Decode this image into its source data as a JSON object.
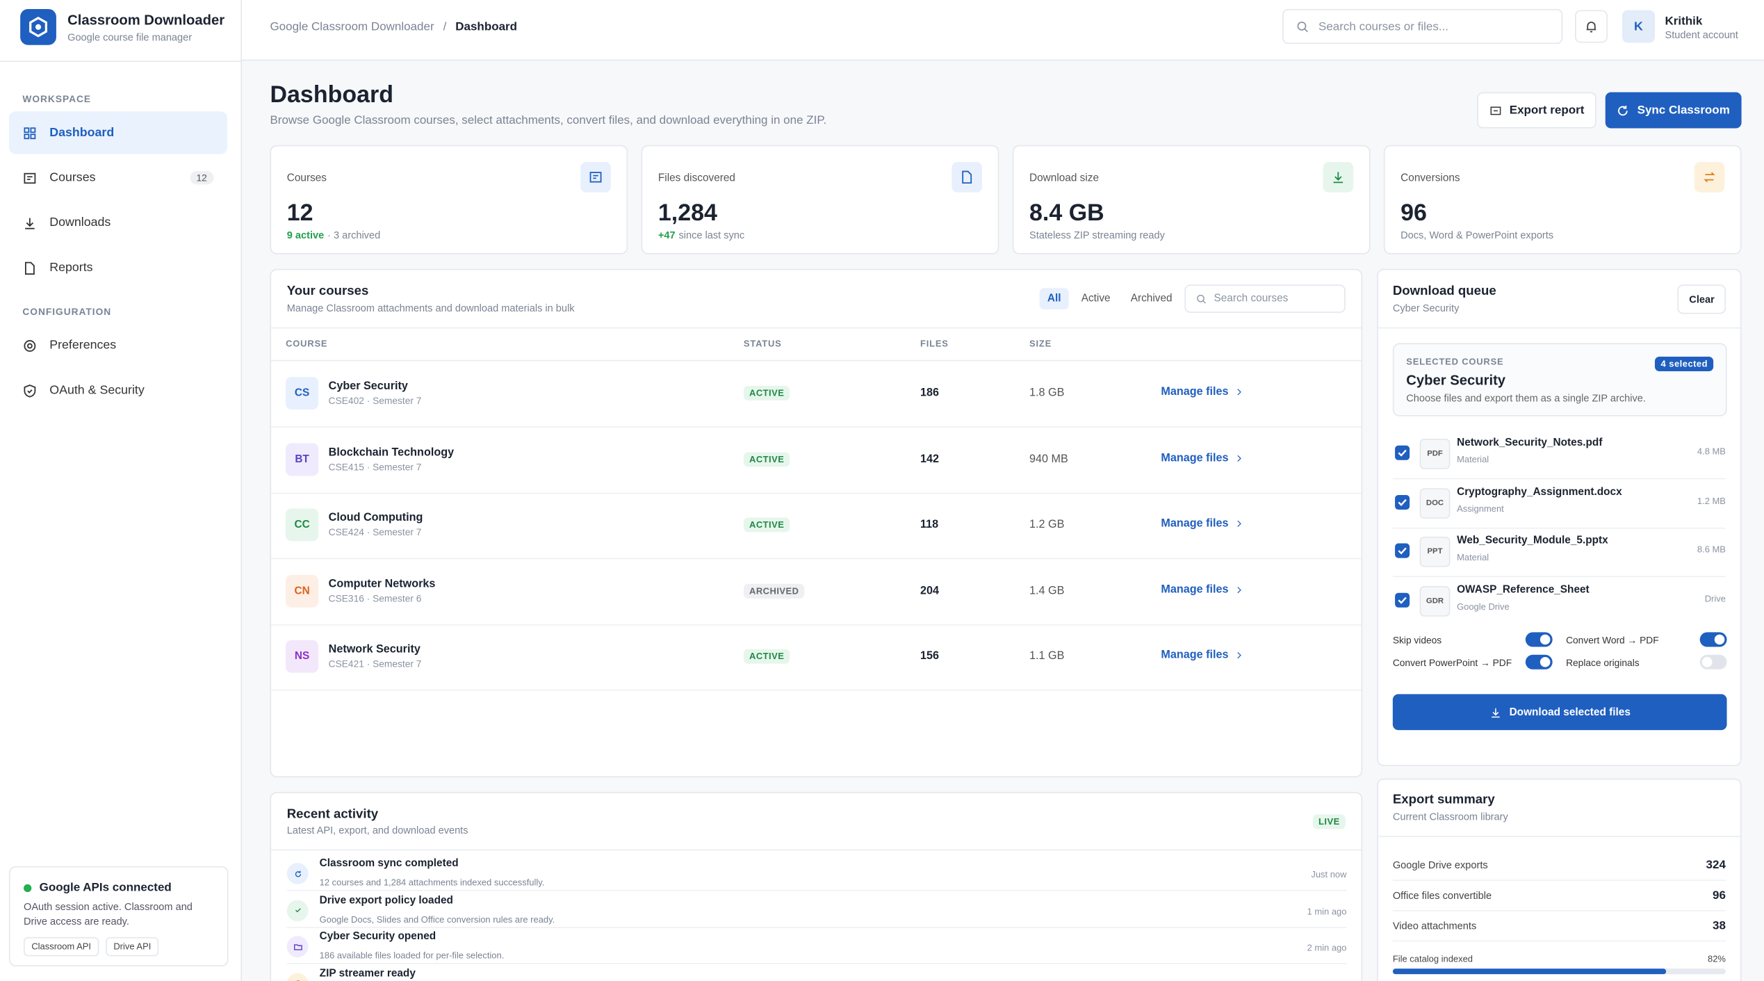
{
  "brand": {
    "title": "Classroom Downloader",
    "subtitle": "Google course file manager"
  },
  "sidebar": {
    "sections": [
      {
        "label": "WORKSPACE",
        "items": [
          {
            "label": "Dashboard",
            "active": true
          },
          {
            "label": "Courses",
            "badge": 12
          },
          {
            "label": "Downloads"
          },
          {
            "label": "Reports"
          }
        ]
      },
      {
        "label": "CONFIGURATION",
        "items": [
          {
            "label": "Preferences"
          },
          {
            "label": "OAuth & Security"
          }
        ]
      }
    ],
    "status": {
      "title": "Google APIs connected",
      "text": "OAuth session active. Classroom and Drive access are ready.",
      "tags": [
        "Classroom API",
        "Drive API"
      ]
    }
  },
  "topbar": {
    "breadcrumb": [
      "Google Classroom Downloader",
      "Dashboard"
    ],
    "separator": "/",
    "search": "Search courses or files...",
    "user": {
      "initial": "K",
      "name": "Krithik",
      "role": "Student account"
    }
  },
  "page": {
    "title": "Dashboard",
    "subtitle": "Browse Google Classroom courses, select attachments, convert files, and download everything in one ZIP.",
    "buttons": [
      "Export report",
      "Sync Classroom"
    ]
  },
  "stats": [
    {
      "label": "Courses",
      "value": 12,
      "highlight": "9 active",
      "note": "· 3 archived",
      "color": "#1f5fbf",
      "bg": "#e8f0fd"
    },
    {
      "label": "Files discovered",
      "value": "1,284",
      "highlight": "+47",
      "note": "since last sync",
      "color": "#1f5fbf",
      "bg": "#e8f0fd"
    },
    {
      "label": "Download size",
      "value": "8.4 GB",
      "note": "Stateless ZIP streaming ready",
      "color": "#1e8a44",
      "bg": "#e7f6ec"
    },
    {
      "label": "Conversions",
      "value": 96,
      "note": "Docs, Word & PowerPoint exports",
      "color": "#d9821c",
      "bg": "#fdf1dc"
    }
  ],
  "courses": {
    "title": "Your courses",
    "subtitle": "Manage Classroom attachments and download materials in bulk",
    "filters": [
      "All",
      "Active",
      "Archived"
    ],
    "search": "Search courses",
    "columns": [
      "COURSE",
      "STATUS",
      "FILES",
      "SIZE"
    ],
    "action": "Manage files",
    "rows": [
      {
        "initials": "CS",
        "name": "Cyber Security",
        "meta": "CSE402 · Semester 7",
        "status": "ACTIVE",
        "files": 186,
        "size": "1.8 GB",
        "color": "#1f5fbf",
        "bg": "#e8f0fd"
      },
      {
        "initials": "BT",
        "name": "Blockchain Technology",
        "meta": "CSE415 · Semester 7",
        "status": "ACTIVE",
        "files": 142,
        "size": "940 MB",
        "color": "#5b3fc4",
        "bg": "#efeafd"
      },
      {
        "initials": "CC",
        "name": "Cloud Computing",
        "meta": "CSE424 · Semester 7",
        "status": "ACTIVE",
        "files": 118,
        "size": "1.2 GB",
        "color": "#1e8a44",
        "bg": "#e7f6ec"
      },
      {
        "initials": "CN",
        "name": "Computer Networks",
        "meta": "CSE316 · Semester 6",
        "status": "ARCHIVED",
        "files": 204,
        "size": "1.4 GB",
        "color": "#d9621c",
        "bg": "#fdefe5"
      },
      {
        "initials": "NS",
        "name": "Network Security",
        "meta": "CSE421 · Semester 7",
        "status": "ACTIVE",
        "files": 156,
        "size": "1.1 GB",
        "color": "#8b2fc9",
        "bg": "#f3e8fb"
      }
    ]
  },
  "queue": {
    "title": "Download queue",
    "subtitle": "Cyber Security",
    "clear": "Clear",
    "selected": {
      "label": "SELECTED COURSE",
      "badge": "4 selected",
      "name": "Cyber Security",
      "text": "Choose files and export them as a single ZIP archive."
    },
    "files": [
      {
        "type": "PDF",
        "name": "Network_Security_Notes.pdf",
        "kind": "Material",
        "size": "4.8 MB"
      },
      {
        "type": "DOC",
        "name": "Cryptography_Assignment.docx",
        "kind": "Assignment",
        "size": "1.2 MB"
      },
      {
        "type": "PPT",
        "name": "Web_Security_Module_5.pptx",
        "kind": "Material",
        "size": "8.6 MB"
      },
      {
        "type": "GDR",
        "name": "OWASP_Reference_Sheet",
        "kind": "Google Drive",
        "size": "Drive"
      }
    ],
    "options": [
      {
        "label": "Skip videos",
        "on": true
      },
      {
        "label": "Convert Word → PDF",
        "on": true
      },
      {
        "label": "Convert PowerPoint → PDF",
        "on": true
      },
      {
        "label": "Replace originals",
        "on": false
      }
    ],
    "button": "Download selected files"
  },
  "activity": {
    "title": "Recent activity",
    "subtitle": "Latest API, export, and download events",
    "badge": "LIVE",
    "items": [
      {
        "title": "Classroom sync completed",
        "text": "12 courses and 1,284 attachments indexed successfully.",
        "time": "Just now"
      },
      {
        "title": "Drive export policy loaded",
        "text": "Google Docs, Slides and Office conversion rules are ready.",
        "time": "1 min ago"
      },
      {
        "title": "Cyber Security opened",
        "text": "186 available files loaded for per-file selection.",
        "time": "2 min ago"
      },
      {
        "title": "ZIP streamer ready"
      }
    ]
  },
  "summary": {
    "title": "Export summary",
    "subtitle": "Current Classroom library",
    "rows": [
      {
        "label": "Google Drive exports",
        "value": 324
      },
      {
        "label": "Office files convertible",
        "value": 96
      },
      {
        "label": "Video attachments",
        "value": 38
      }
    ],
    "progress": {
      "label": "File catalog indexed",
      "value": 82,
      "text": "82%"
    }
  }
}
